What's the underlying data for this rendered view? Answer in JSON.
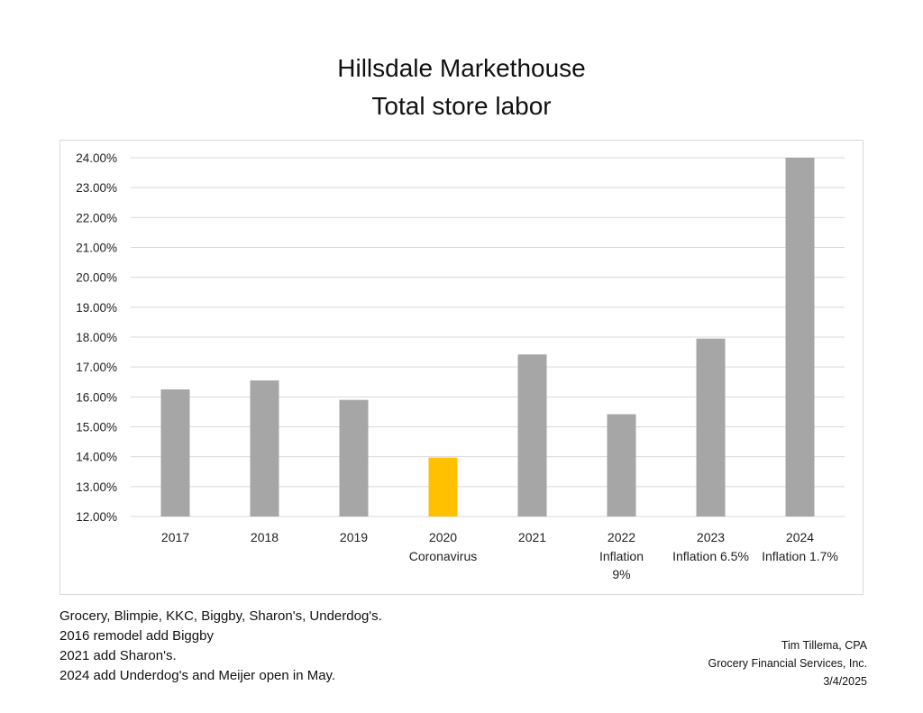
{
  "header": {
    "title_line1": "Hillsdale Markethouse",
    "title_line2": "Total store labor"
  },
  "chart_data": {
    "type": "bar",
    "categories": [
      "2017",
      "2018",
      "2019",
      "2020",
      "2021",
      "2022",
      "2023",
      "2024"
    ],
    "category_sublabels": [
      [],
      [],
      [],
      [
        "Coronavirus"
      ],
      [],
      [
        "Inflation",
        "9%"
      ],
      [
        "Inflation 6.5%"
      ],
      [
        "Inflation 1.7%"
      ]
    ],
    "values": [
      16.25,
      16.55,
      15.9,
      13.97,
      17.42,
      15.42,
      17.95,
      24.0
    ],
    "bar_colors": [
      "#a6a6a6",
      "#a6a6a6",
      "#a6a6a6",
      "#ffc000",
      "#a6a6a6",
      "#a6a6a6",
      "#a6a6a6",
      "#a6a6a6"
    ],
    "ylim": [
      12,
      24
    ],
    "yticks": [
      "12.00%",
      "13.00%",
      "14.00%",
      "15.00%",
      "16.00%",
      "17.00%",
      "18.00%",
      "19.00%",
      "20.00%",
      "21.00%",
      "22.00%",
      "23.00%",
      "24.00%"
    ],
    "grid": true,
    "legend": "none"
  },
  "notes": [
    "Grocery, Blimpie, KKC, Biggby, Sharon's, Underdog's.",
    "2016 remodel add Biggby",
    "2021 add Sharon's.",
    "2024 add Underdog's and Meijer open in May."
  ],
  "credit": {
    "name": "Tim Tillema, CPA",
    "company": "Grocery Financial Services, Inc.",
    "date": "3/4/2025"
  },
  "colors": {
    "bar_default": "#a6a6a6",
    "bar_highlight": "#ffc000",
    "gridline": "#d9d9d9"
  }
}
